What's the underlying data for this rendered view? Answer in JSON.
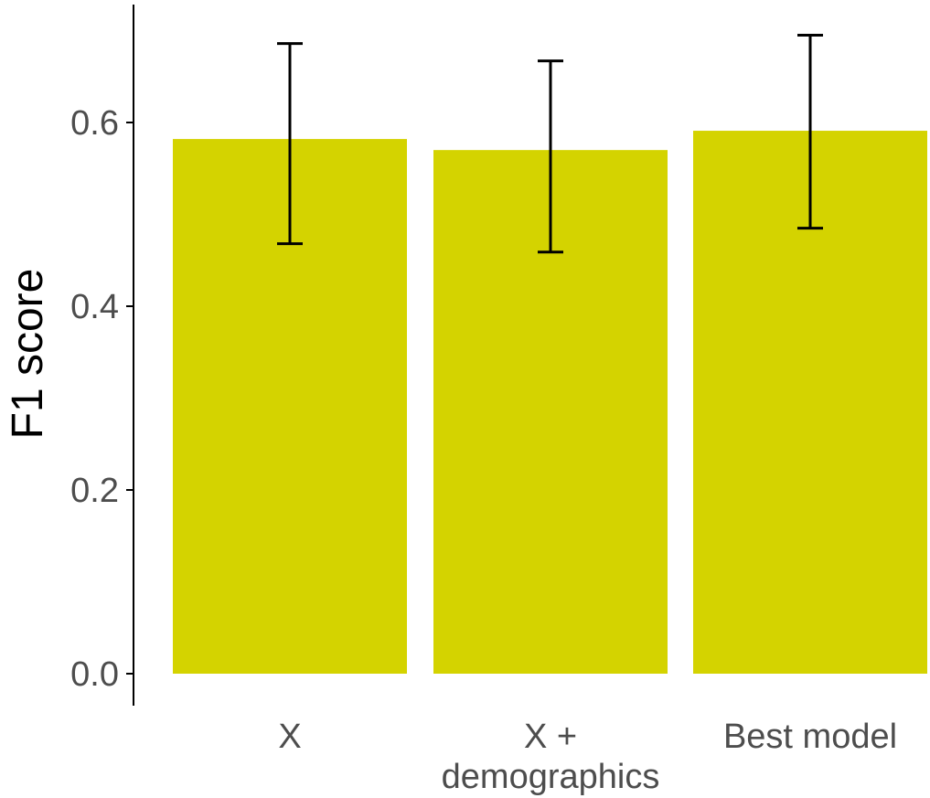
{
  "chart_data": {
    "type": "bar",
    "title": "",
    "xlabel": "",
    "ylabel": "F1 score",
    "categories": [
      "X",
      "X +\ndemographics",
      "Best model"
    ],
    "values": [
      0.582,
      0.57,
      0.591
    ],
    "error_low": [
      0.468,
      0.459,
      0.485
    ],
    "error_high": [
      0.686,
      0.667,
      0.695
    ],
    "ylim": [
      0,
      0.72
    ],
    "yticks": [
      0.0,
      0.2,
      0.4,
      0.6
    ],
    "ytick_labels": [
      "0.0",
      "0.2",
      "0.4",
      "0.6"
    ],
    "grid": false,
    "legend": "none",
    "colors": {
      "bar": "#d4d300",
      "error_bar": "#000000",
      "axis": "#000000",
      "tick_label": "#4d4d4d"
    }
  }
}
